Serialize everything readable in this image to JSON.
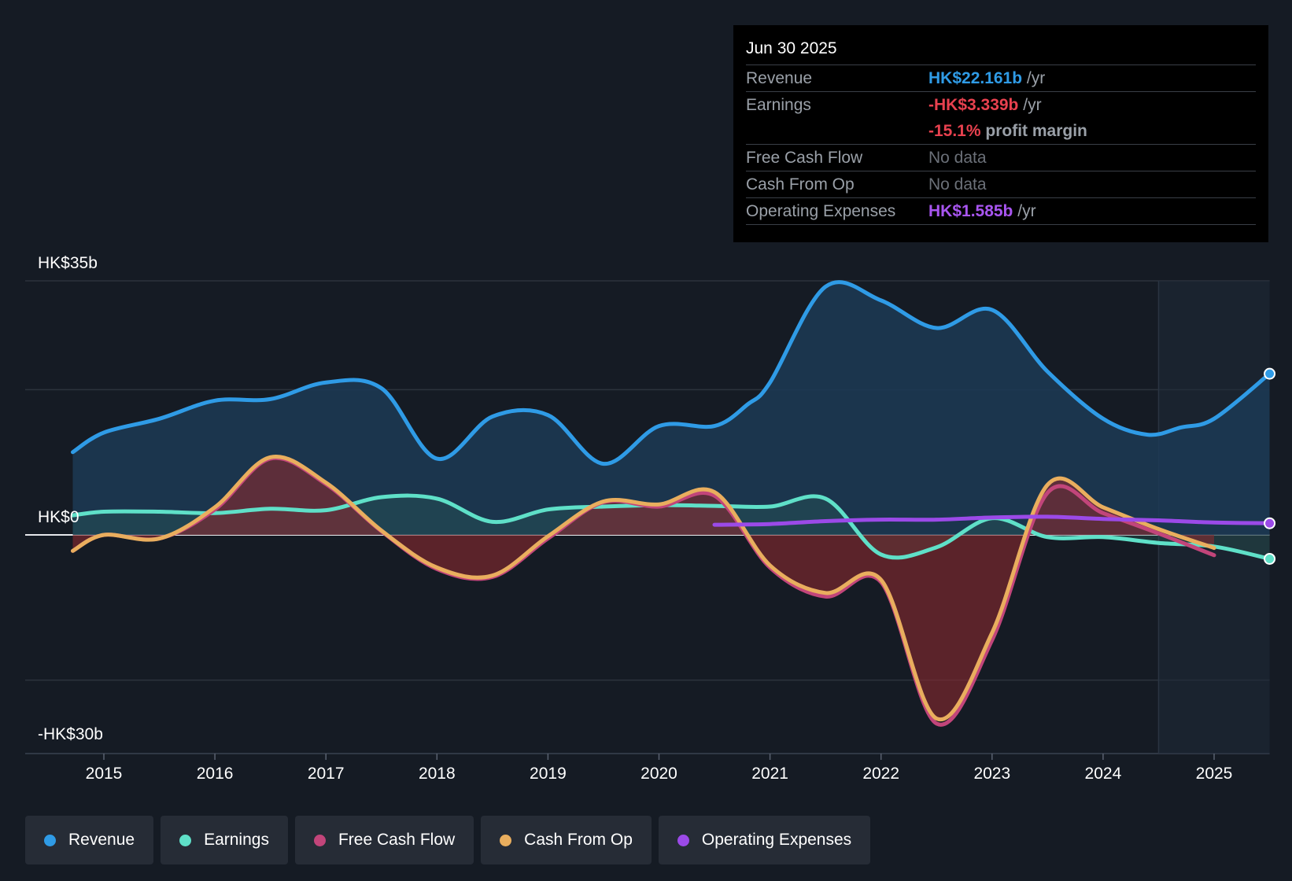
{
  "tooltip": {
    "date": "Jun 30 2025",
    "revenue_label": "Revenue",
    "revenue_value": "HK$22.161b",
    "earnings_label": "Earnings",
    "earnings_value": "-HK$3.339b",
    "margin_value": "-15.1%",
    "margin_suffix": "profit margin",
    "fcf_label": "Free Cash Flow",
    "fcf_value": "No data",
    "cfo_label": "Cash From Op",
    "cfo_value": "No data",
    "opex_label": "Operating Expenses",
    "opex_value": "HK$1.585b",
    "per_year": "/yr"
  },
  "legend": {
    "revenue": "Revenue",
    "earnings": "Earnings",
    "fcf": "Free Cash Flow",
    "cfo": "Cash From Op",
    "opex": "Operating Expenses"
  },
  "colors": {
    "revenue": "#2f9be6",
    "earnings": "#5fe0c8",
    "fcf": "#c2457a",
    "cfo": "#e9ae5e",
    "opex": "#9b4ae8",
    "background": "#151b24"
  },
  "chart_data": {
    "type": "line",
    "title": "",
    "y_top_label": "HK$35b",
    "y_zero_label": "HK$0",
    "y_bottom_label": "-HK$30b",
    "ylim": [
      -30,
      35
    ],
    "xlim": [
      2014.7,
      2025.5
    ],
    "x_ticks": [
      "2015",
      "2016",
      "2017",
      "2018",
      "2019",
      "2020",
      "2021",
      "2022",
      "2023",
      "2024",
      "2025"
    ],
    "gridlines": [
      35,
      20,
      0,
      -20
    ],
    "forecast_start": 2024.5,
    "series": [
      {
        "name": "Revenue",
        "key": "revenue",
        "points": [
          [
            2014.72,
            11.4
          ],
          [
            2015.0,
            14.1
          ],
          [
            2015.5,
            16.0
          ],
          [
            2016.0,
            18.5
          ],
          [
            2016.5,
            18.7
          ],
          [
            2017.0,
            21.0
          ],
          [
            2017.5,
            20.2
          ],
          [
            2018.0,
            10.5
          ],
          [
            2018.5,
            16.3
          ],
          [
            2019.0,
            16.5
          ],
          [
            2019.5,
            9.8
          ],
          [
            2020.0,
            15.0
          ],
          [
            2020.5,
            15.0
          ],
          [
            2020.8,
            18.0
          ],
          [
            2021.0,
            21.0
          ],
          [
            2021.5,
            34.2
          ],
          [
            2022.0,
            32.3
          ],
          [
            2022.5,
            28.5
          ],
          [
            2023.0,
            31.0
          ],
          [
            2023.5,
            22.5
          ],
          [
            2024.0,
            16.0
          ],
          [
            2024.4,
            13.8
          ],
          [
            2024.7,
            14.8
          ],
          [
            2025.0,
            16.0
          ],
          [
            2025.5,
            22.2
          ]
        ]
      },
      {
        "name": "Earnings",
        "key": "earnings",
        "points": [
          [
            2014.72,
            2.7
          ],
          [
            2015.0,
            3.2
          ],
          [
            2015.5,
            3.2
          ],
          [
            2016.0,
            3.0
          ],
          [
            2016.5,
            3.6
          ],
          [
            2017.0,
            3.4
          ],
          [
            2017.5,
            5.2
          ],
          [
            2018.0,
            5.0
          ],
          [
            2018.5,
            1.8
          ],
          [
            2019.0,
            3.5
          ],
          [
            2019.5,
            3.9
          ],
          [
            2020.0,
            4.1
          ],
          [
            2020.5,
            4.0
          ],
          [
            2021.0,
            3.9
          ],
          [
            2021.5,
            5.0
          ],
          [
            2022.0,
            -2.7
          ],
          [
            2022.5,
            -1.7
          ],
          [
            2023.0,
            2.3
          ],
          [
            2023.5,
            -0.3
          ],
          [
            2024.0,
            -0.3
          ],
          [
            2024.5,
            -1.1
          ],
          [
            2025.0,
            -1.6
          ],
          [
            2025.5,
            -3.3
          ]
        ]
      },
      {
        "name": "Free Cash Flow",
        "key": "fcf",
        "points": [
          [
            2014.72,
            -2.2
          ],
          [
            2015.0,
            0.0
          ],
          [
            2015.5,
            -0.5
          ],
          [
            2016.0,
            3.5
          ],
          [
            2016.5,
            10.5
          ],
          [
            2017.0,
            7.0
          ],
          [
            2017.5,
            0.5
          ],
          [
            2018.0,
            -4.7
          ],
          [
            2018.5,
            -5.8
          ],
          [
            2019.0,
            -0.5
          ],
          [
            2019.5,
            4.5
          ],
          [
            2020.0,
            3.9
          ],
          [
            2020.5,
            5.4
          ],
          [
            2021.0,
            -4.5
          ],
          [
            2021.5,
            -8.5
          ],
          [
            2022.0,
            -6.5
          ],
          [
            2022.5,
            -26.0
          ],
          [
            2023.0,
            -14.5
          ],
          [
            2023.5,
            5.8
          ],
          [
            2024.0,
            3.0
          ],
          [
            2024.5,
            0.2
          ],
          [
            2025.0,
            -2.8
          ]
        ]
      },
      {
        "name": "Cash From Op",
        "key": "cfo",
        "points": [
          [
            2014.72,
            -2.2
          ],
          [
            2015.0,
            0.0
          ],
          [
            2015.5,
            -0.5
          ],
          [
            2016.0,
            3.8
          ],
          [
            2016.5,
            10.7
          ],
          [
            2017.0,
            7.2
          ],
          [
            2017.5,
            0.6
          ],
          [
            2018.0,
            -4.5
          ],
          [
            2018.5,
            -5.6
          ],
          [
            2019.0,
            -0.2
          ],
          [
            2019.5,
            4.6
          ],
          [
            2020.0,
            4.2
          ],
          [
            2020.5,
            5.9
          ],
          [
            2021.0,
            -4.2
          ],
          [
            2021.5,
            -8.0
          ],
          [
            2022.0,
            -6.2
          ],
          [
            2022.5,
            -25.3
          ],
          [
            2023.0,
            -13.5
          ],
          [
            2023.5,
            6.9
          ],
          [
            2024.0,
            3.8
          ],
          [
            2024.5,
            0.8
          ],
          [
            2025.0,
            -1.8
          ]
        ]
      },
      {
        "name": "Operating Expenses",
        "key": "opex",
        "points": [
          [
            2020.5,
            1.4
          ],
          [
            2021.0,
            1.5
          ],
          [
            2021.5,
            1.9
          ],
          [
            2022.0,
            2.1
          ],
          [
            2022.5,
            2.1
          ],
          [
            2023.0,
            2.4
          ],
          [
            2023.5,
            2.5
          ],
          [
            2024.0,
            2.2
          ],
          [
            2024.5,
            2.0
          ],
          [
            2025.0,
            1.7
          ],
          [
            2025.5,
            1.6
          ]
        ]
      }
    ]
  }
}
